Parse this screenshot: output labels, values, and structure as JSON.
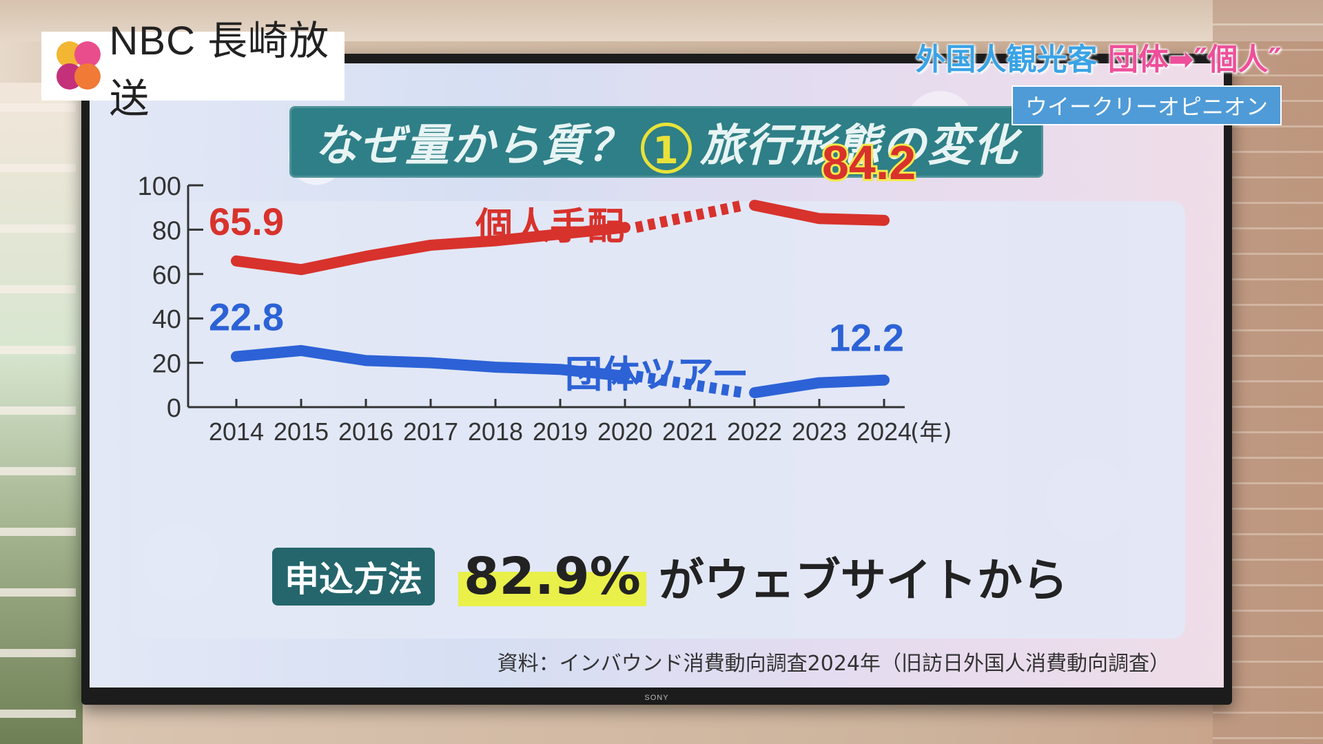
{
  "logo": {
    "name": "NBC 長崎放送",
    "colors": [
      "#f2b632",
      "#e94d8b",
      "#c4307a",
      "#f07a36"
    ]
  },
  "caption": {
    "main_part1": "外国人観光客",
    "main_part2": "団体➡″個人″",
    "sub": "ウイークリーオピニオン"
  },
  "title": {
    "before": "なぜ量から質？",
    "number": "1",
    "after": "旅行形態の変化"
  },
  "chart_data": {
    "type": "line",
    "x": [
      "2014",
      "2015",
      "2016",
      "2017",
      "2018",
      "2019",
      "2020",
      "2021",
      "2022",
      "2023",
      "2024"
    ],
    "x_unit": "(年)",
    "ylim": [
      0,
      100
    ],
    "yticks": [
      0,
      20,
      40,
      60,
      80,
      100
    ],
    "grid": false,
    "series": [
      {
        "name": "個人手配",
        "color": "#d8322c",
        "values": [
          65.9,
          62,
          68,
          73,
          75,
          78,
          81,
          null,
          91,
          85,
          84.2
        ],
        "dashed_segment": [
          "2020",
          "2022"
        ],
        "labels": [
          {
            "x": "2014",
            "text": "65.9"
          },
          {
            "x": "2024",
            "text": "84.2"
          }
        ]
      },
      {
        "name": "団体ツアー",
        "color": "#2c62d6",
        "values": [
          22.8,
          25.5,
          21,
          20,
          18,
          17,
          14,
          null,
          6.5,
          11,
          12.2
        ],
        "dashed_segment": [
          "2020",
          "2022"
        ],
        "labels": [
          {
            "x": "2014",
            "text": "22.8"
          },
          {
            "x": "2024",
            "text": "12.2"
          }
        ]
      }
    ]
  },
  "note": {
    "badge": "申込方法",
    "percent": "82.9%",
    "text": "がウェブサイトから"
  },
  "source": "資料：インバウンド消費動向調査2024年（旧訪日外国人消費動向調査）",
  "tv_brand": "SONY"
}
